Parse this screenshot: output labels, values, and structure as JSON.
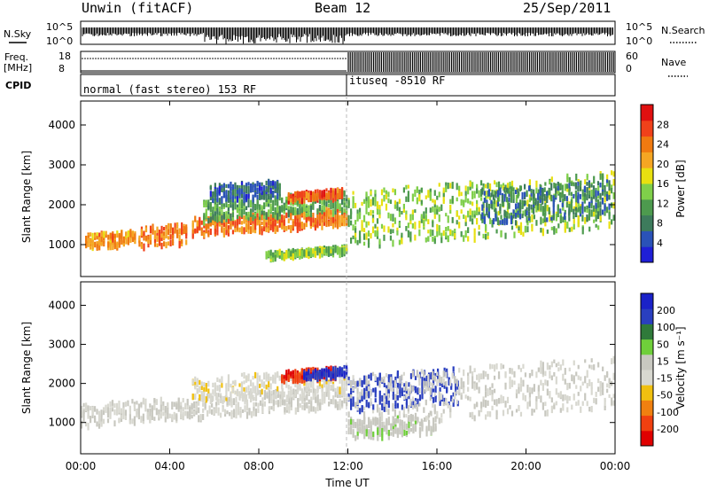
{
  "header": {
    "station": "Unwin (fitACF)",
    "beam": "Beam 12",
    "date": "25/Sep/2011"
  },
  "strip_labels": {
    "nsky": "N.Sky",
    "nsky_tick_top": "10^5",
    "nsky_tick_bottom": "10^0",
    "nsearch": "N.Search",
    "nsearch_tick_top": "10^5",
    "nsearch_tick_bottom": "10^0",
    "freq": "Freq.",
    "freq_unit": "[MHz]",
    "freq_tick_top": "18",
    "freq_tick_bottom": "8",
    "nave": "Nave",
    "nave_tick_top": "60",
    "nave_tick_bottom": "0",
    "cpid": "CPID",
    "cpid_mode_1": "normal (fast stereo) 153 RF",
    "cpid_mode_2": "ituseq -8510 RF"
  },
  "colors": {
    "power": [
      "#1f1fd6",
      "#2a52b8",
      "#3d7b5c",
      "#4d9a4e",
      "#7fcf4a",
      "#e8e010",
      "#f5a623",
      "#f07a10",
      "#f0411a",
      "#e01010"
    ],
    "velocity": [
      "#1a22c8",
      "#2a3fbf",
      "#2f7a3a",
      "#6fcf3a",
      "#c8c8c0",
      "#d8d8d0",
      "#f0c010",
      "#f08010",
      "#f04010",
      "#e00000"
    ]
  },
  "chart_data": [
    {
      "type": "heatmap",
      "name": "power",
      "xlabel": "",
      "ylabel": "Slant Range [km]",
      "x_ticks": [
        "00:00",
        "04:00",
        "08:00",
        "12:00",
        "16:00",
        "20:00",
        "00:00"
      ],
      "y_ticks": [
        "1000",
        "2000",
        "3000",
        "4000"
      ],
      "ylim": [
        200,
        4600
      ],
      "xlim_hours": [
        0,
        24
      ],
      "colorbar": {
        "label": "Power [dB]",
        "ticks": [
          "4",
          "8",
          "12",
          "16",
          "20",
          "24",
          "28"
        ],
        "range": [
          0,
          32
        ]
      },
      "bands": [
        {
          "x_start": 0.2,
          "x_end": 2.5,
          "range_center": 1150,
          "width": 350,
          "value": 22
        },
        {
          "x_start": 2.6,
          "x_end": 4.8,
          "range_center": 1250,
          "width": 500,
          "value": 24
        },
        {
          "x_start": 5.0,
          "x_end": 12.0,
          "range_center": 1500,
          "width": 450,
          "value": 24
        },
        {
          "x_start": 5.5,
          "x_end": 12.0,
          "range_center": 1900,
          "width": 500,
          "value": 12
        },
        {
          "x_start": 9.3,
          "x_end": 11.8,
          "range_center": 2250,
          "width": 200,
          "value": 26
        },
        {
          "x_start": 5.8,
          "x_end": 9.0,
          "range_center": 2350,
          "width": 400,
          "value": 6
        },
        {
          "x_start": 8.3,
          "x_end": 12.0,
          "range_center": 800,
          "width": 150,
          "value": 14
        },
        {
          "x_start": 12.0,
          "x_end": 24.0,
          "range_center": 1700,
          "width": 1400,
          "value": 14
        },
        {
          "x_start": 18.0,
          "x_end": 23.8,
          "range_center": 2000,
          "width": 900,
          "value": 8
        }
      ]
    },
    {
      "type": "heatmap",
      "name": "velocity",
      "xlabel": "Time UT",
      "ylabel": "Slant Range [km]",
      "x_ticks": [
        "00:00",
        "04:00",
        "08:00",
        "12:00",
        "16:00",
        "20:00",
        "00:00"
      ],
      "y_ticks": [
        "1000",
        "2000",
        "3000",
        "4000"
      ],
      "ylim": [
        200,
        4600
      ],
      "xlim_hours": [
        0,
        24
      ],
      "colorbar": {
        "label": "Velocity [m s⁻¹]",
        "ticks": [
          "200",
          "100",
          "50",
          "15",
          "-15",
          "-50",
          "-100",
          "-200"
        ],
        "range": [
          -250,
          250
        ]
      },
      "bands": [
        {
          "x_start": 0.0,
          "x_end": 12.0,
          "range_center": 1250,
          "width": 550,
          "value": 0
        },
        {
          "x_start": 5.0,
          "x_end": 12.0,
          "range_center": 1900,
          "width": 600,
          "value": -40
        },
        {
          "x_start": 9.0,
          "x_end": 11.5,
          "range_center": 2250,
          "width": 250,
          "value": -200
        },
        {
          "x_start": 10.0,
          "x_end": 12.0,
          "range_center": 2300,
          "width": 200,
          "value": 200
        },
        {
          "x_start": 12.0,
          "x_end": 17.0,
          "range_center": 1800,
          "width": 900,
          "value": 180
        },
        {
          "x_start": 12.0,
          "x_end": 24.0,
          "range_center": 1600,
          "width": 1300,
          "value": 0
        },
        {
          "x_start": 12.0,
          "x_end": 16.0,
          "range_center": 900,
          "width": 500,
          "value": 40
        }
      ]
    }
  ]
}
